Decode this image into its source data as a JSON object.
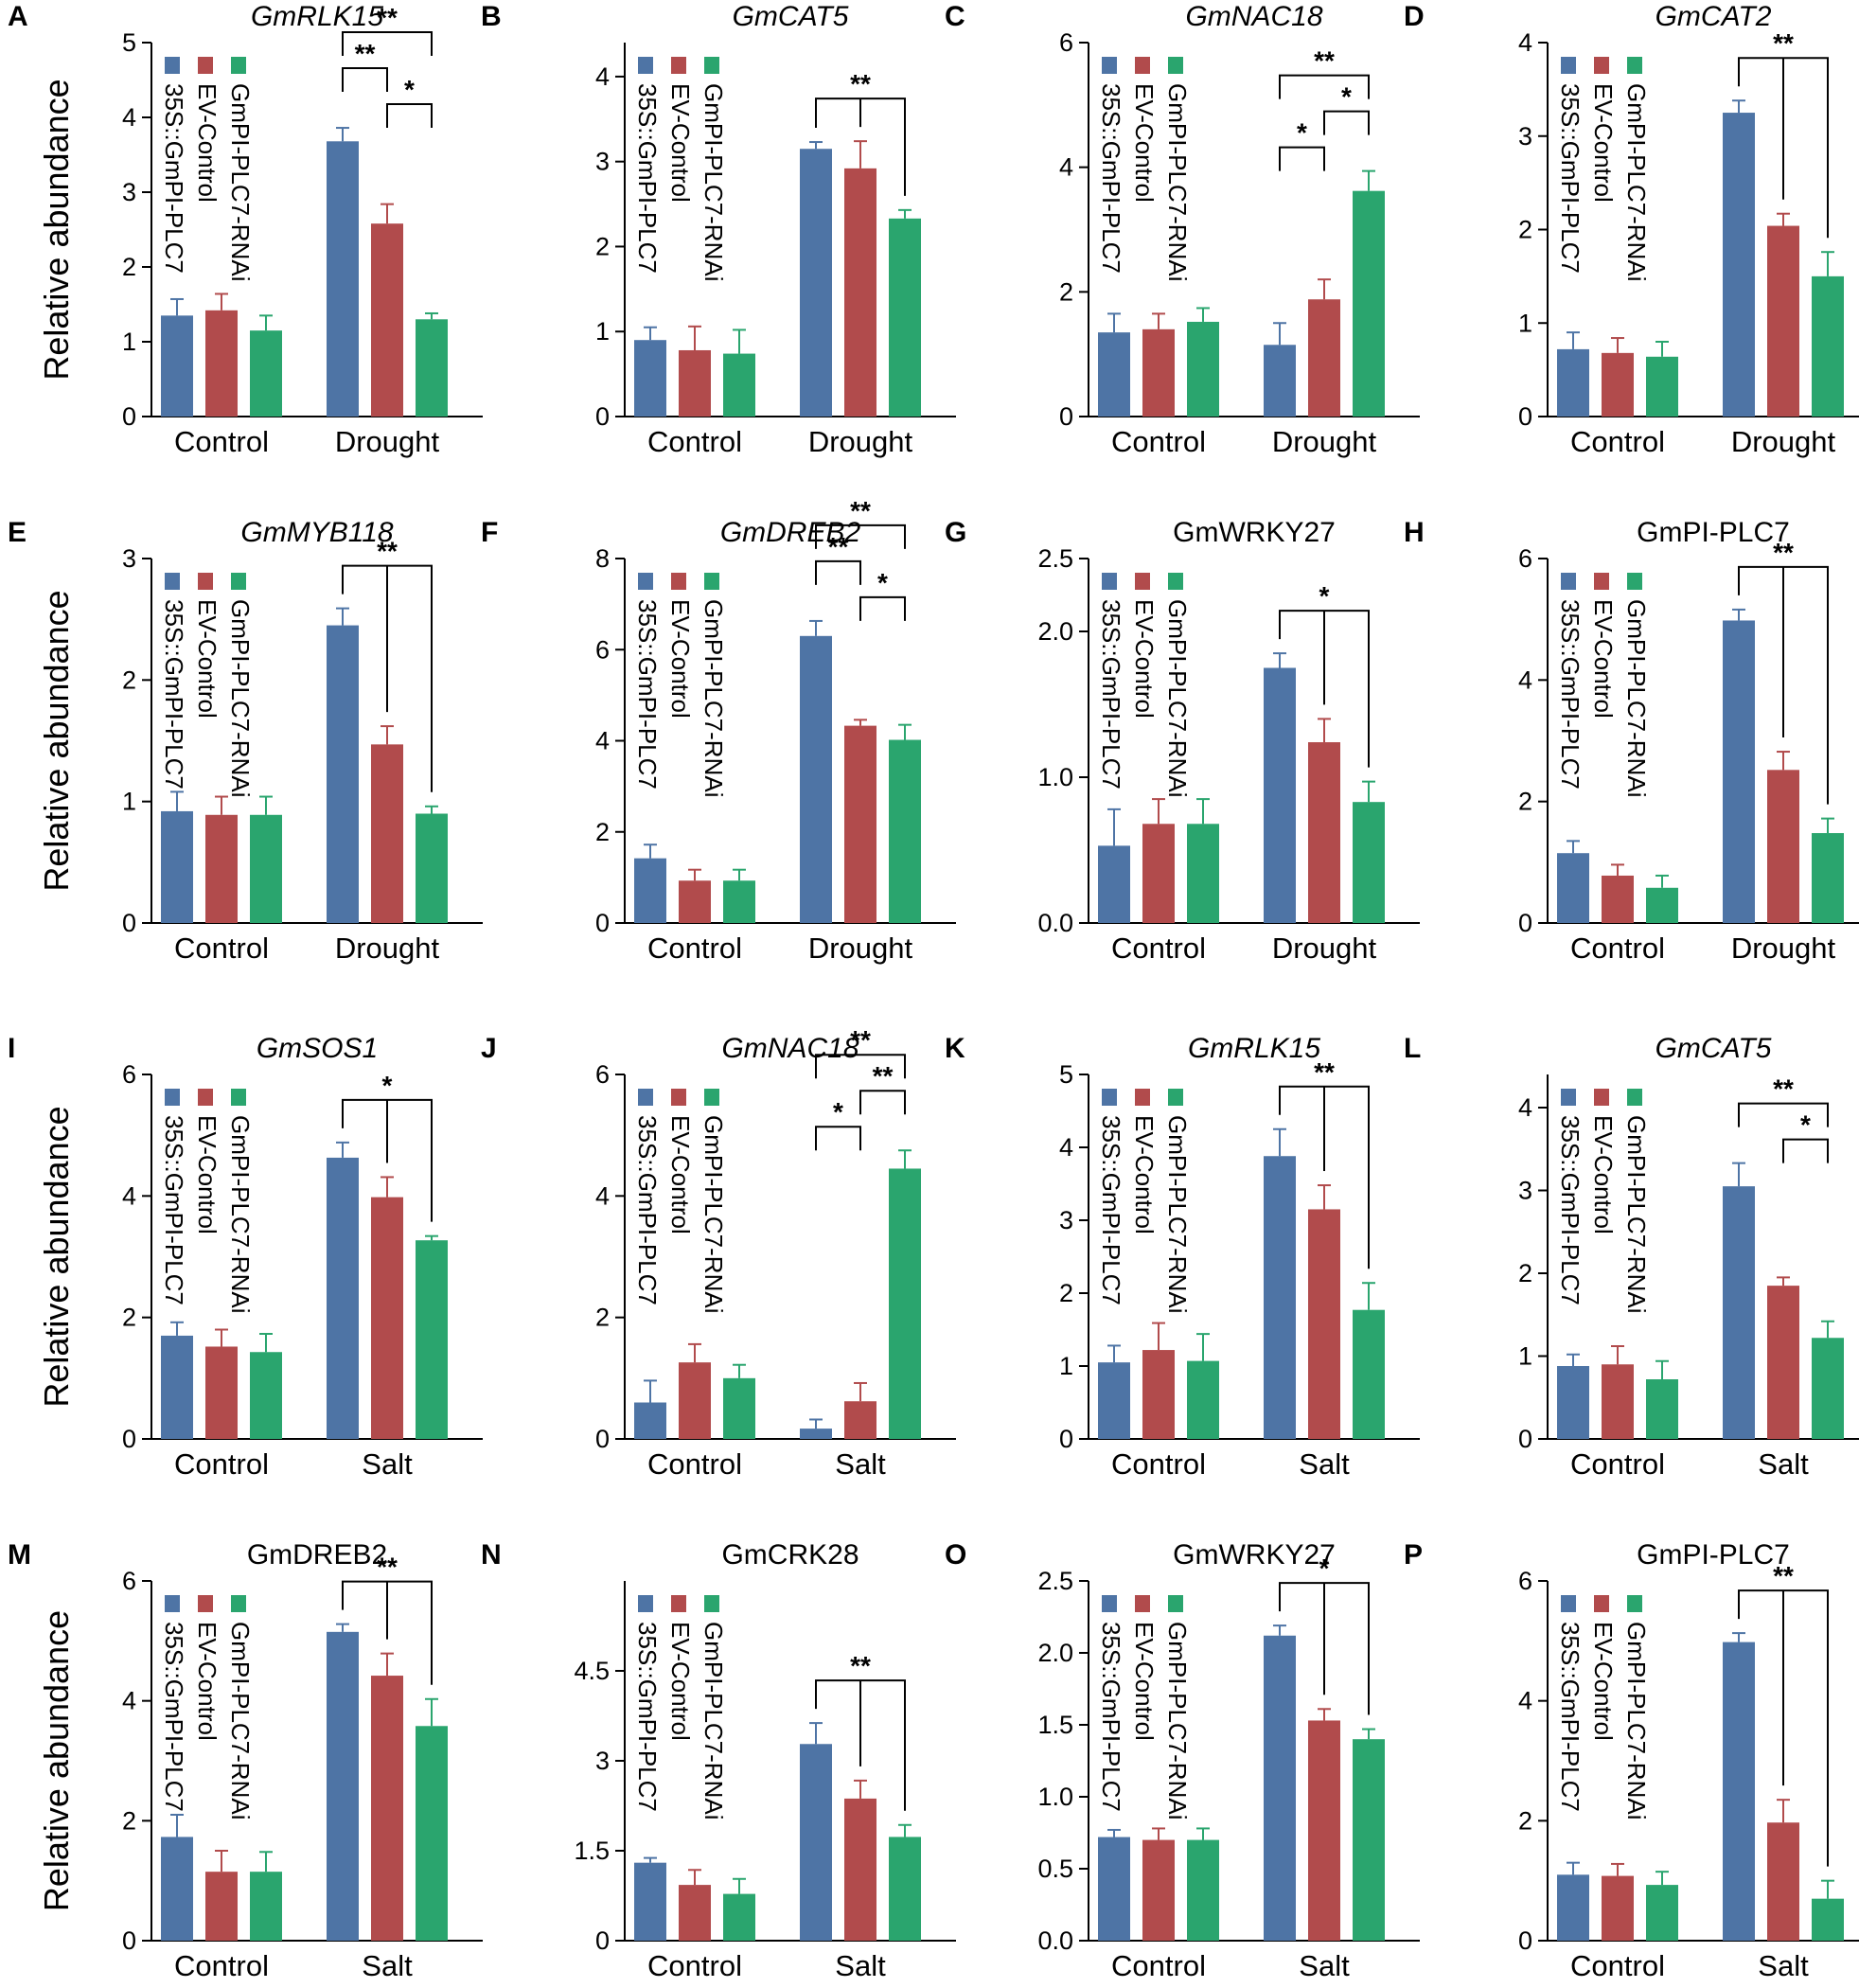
{
  "colors": {
    "series": [
      "#4e74a5",
      "#b14b4c",
      "#2aa56e"
    ],
    "axis": "#000000"
  },
  "ylabel": "Relative abundance",
  "legend": [
    "35S::GmPI-PLC7",
    "EV-Control",
    "GmPI-PLC7-RNAi"
  ],
  "chart_data": [
    {
      "type": "bar",
      "panel": "A",
      "title": "GmRLK15",
      "italic": true,
      "categories": [
        "Control",
        "Drought"
      ],
      "yticks": [
        "0",
        "1",
        "2",
        "3",
        "4",
        "5"
      ],
      "ylim": [
        0,
        5
      ],
      "series": [
        {
          "name": "35S::GmPI-PLC7",
          "values": [
            1.35,
            3.68
          ],
          "errors": [
            0.22,
            0.18
          ]
        },
        {
          "name": "EV-Control",
          "values": [
            1.42,
            2.58
          ],
          "errors": [
            0.22,
            0.26
          ]
        },
        {
          "name": "GmPI-PLC7-RNAi",
          "values": [
            1.15,
            1.3
          ],
          "errors": [
            0.2,
            0.08
          ]
        }
      ],
      "sig": [
        {
          "type": "bracket",
          "pair": [
            0,
            1
          ],
          "label": "**",
          "level": 2
        },
        {
          "type": "bracket",
          "pair": [
            1,
            2
          ],
          "label": "*",
          "level": 1
        },
        {
          "type": "span",
          "pair": [
            0,
            2
          ],
          "label": "**",
          "level": 3
        }
      ]
    },
    {
      "type": "bar",
      "panel": "B",
      "title": "GmCAT5",
      "italic": true,
      "categories": [
        "Control",
        "Drought"
      ],
      "yticks": [
        "0",
        "1",
        "2",
        "3",
        "4"
      ],
      "ylim": [
        0,
        4.4
      ],
      "series": [
        {
          "name": "35S::GmPI-PLC7",
          "values": [
            0.9,
            3.15
          ],
          "errors": [
            0.15,
            0.08
          ]
        },
        {
          "name": "EV-Control",
          "values": [
            0.78,
            2.92
          ],
          "errors": [
            0.28,
            0.32
          ]
        },
        {
          "name": "GmPI-PLC7-RNAi",
          "values": [
            0.74,
            2.33
          ],
          "errors": [
            0.28,
            0.1
          ]
        }
      ],
      "sig": [
        {
          "type": "trident",
          "label": "**",
          "level": 1
        }
      ]
    },
    {
      "type": "bar",
      "panel": "C",
      "title": "GmNAC18",
      "italic": true,
      "categories": [
        "Control",
        "Drought"
      ],
      "yticks": [
        "0",
        "2",
        "4",
        "6"
      ],
      "ylim": [
        0,
        6
      ],
      "series": [
        {
          "name": "35S::GmPI-PLC7",
          "values": [
            1.35,
            1.15
          ],
          "errors": [
            0.3,
            0.35
          ]
        },
        {
          "name": "EV-Control",
          "values": [
            1.4,
            1.88
          ],
          "errors": [
            0.25,
            0.32
          ]
        },
        {
          "name": "GmPI-PLC7-RNAi",
          "values": [
            1.52,
            3.62
          ],
          "errors": [
            0.22,
            0.32
          ]
        }
      ],
      "sig": [
        {
          "type": "bracket",
          "pair": [
            0,
            1
          ],
          "label": "*",
          "level": 1
        },
        {
          "type": "bracket",
          "pair": [
            1,
            2
          ],
          "label": "*",
          "level": 2
        },
        {
          "type": "span",
          "pair": [
            0,
            2
          ],
          "label": "**",
          "level": 3
        }
      ]
    },
    {
      "type": "bar",
      "panel": "D",
      "title": "GmCAT2",
      "italic": true,
      "categories": [
        "Control",
        "Drought"
      ],
      "yticks": [
        "0",
        "1",
        "2",
        "3",
        "4"
      ],
      "ylim": [
        0,
        4
      ],
      "series": [
        {
          "name": "35S::GmPI-PLC7",
          "values": [
            0.72,
            3.25
          ],
          "errors": [
            0.18,
            0.13
          ]
        },
        {
          "name": "EV-Control",
          "values": [
            0.68,
            2.04
          ],
          "errors": [
            0.16,
            0.13
          ]
        },
        {
          "name": "GmPI-PLC7-RNAi",
          "values": [
            0.64,
            1.5
          ],
          "errors": [
            0.16,
            0.26
          ]
        }
      ],
      "sig": [
        {
          "type": "trident",
          "label": "**",
          "level": 1
        }
      ]
    },
    {
      "type": "bar",
      "panel": "E",
      "title": "GmMYB118",
      "italic": true,
      "categories": [
        "Control",
        "Drought"
      ],
      "yticks": [
        "0",
        "1",
        "2",
        "3"
      ],
      "ylim": [
        0,
        3
      ],
      "series": [
        {
          "name": "35S::GmPI-PLC7",
          "values": [
            0.92,
            2.45
          ],
          "errors": [
            0.16,
            0.14
          ]
        },
        {
          "name": "EV-Control",
          "values": [
            0.89,
            1.47
          ],
          "errors": [
            0.15,
            0.15
          ]
        },
        {
          "name": "GmPI-PLC7-RNAi",
          "values": [
            0.89,
            0.9
          ],
          "errors": [
            0.15,
            0.06
          ]
        }
      ],
      "sig": [
        {
          "type": "trident",
          "label": "**",
          "level": 1
        }
      ]
    },
    {
      "type": "bar",
      "panel": "F",
      "title": "GmDREB2",
      "italic": true,
      "categories": [
        "Control",
        "Drought"
      ],
      "yticks": [
        "0",
        "2",
        "4",
        "6",
        "8"
      ],
      "ylim": [
        0,
        8
      ],
      "series": [
        {
          "name": "35S::GmPI-PLC7",
          "values": [
            1.42,
            6.3
          ],
          "errors": [
            0.3,
            0.33
          ]
        },
        {
          "name": "EV-Control",
          "values": [
            0.93,
            4.33
          ],
          "errors": [
            0.24,
            0.13
          ]
        },
        {
          "name": "GmPI-PLC7-RNAi",
          "values": [
            0.93,
            4.02
          ],
          "errors": [
            0.24,
            0.33
          ]
        }
      ],
      "sig": [
        {
          "type": "bracket",
          "pair": [
            0,
            1
          ],
          "label": "**",
          "level": 2
        },
        {
          "type": "bracket",
          "pair": [
            1,
            2
          ],
          "label": "*",
          "level": 1
        },
        {
          "type": "span",
          "pair": [
            0,
            2
          ],
          "label": "**",
          "level": 3
        }
      ]
    },
    {
      "type": "bar",
      "panel": "G",
      "title": "GmWRKY27",
      "italic": false,
      "categories": [
        "Control",
        "Drought"
      ],
      "yticks": [
        "0.0",
        "1.0",
        "2.0",
        "2.5"
      ],
      "ytickvals": [
        0,
        1,
        2,
        2.5
      ],
      "ylim": [
        0,
        2.5
      ],
      "series": [
        {
          "name": "35S::GmPI-PLC7",
          "values": [
            0.53,
            1.75
          ],
          "errors": [
            0.25,
            0.1
          ]
        },
        {
          "name": "EV-Control",
          "values": [
            0.68,
            1.24
          ],
          "errors": [
            0.17,
            0.16
          ]
        },
        {
          "name": "GmPI-PLC7-RNAi",
          "values": [
            0.68,
            0.83
          ],
          "errors": [
            0.17,
            0.14
          ]
        }
      ],
      "sig": [
        {
          "type": "trident",
          "label": "*",
          "level": 1
        }
      ]
    },
    {
      "type": "bar",
      "panel": "H",
      "title": "GmPI-PLC7",
      "italic": false,
      "categories": [
        "Control",
        "Drought"
      ],
      "yticks": [
        "0",
        "2",
        "4",
        "6"
      ],
      "ylim": [
        0,
        6
      ],
      "series": [
        {
          "name": "35S::GmPI-PLC7",
          "values": [
            1.15,
            4.98
          ],
          "errors": [
            0.2,
            0.18
          ]
        },
        {
          "name": "EV-Control",
          "values": [
            0.78,
            2.52
          ],
          "errors": [
            0.18,
            0.3
          ]
        },
        {
          "name": "GmPI-PLC7-RNAi",
          "values": [
            0.58,
            1.48
          ],
          "errors": [
            0.2,
            0.24
          ]
        }
      ],
      "sig": [
        {
          "type": "trident",
          "label": "**",
          "level": 1
        }
      ]
    },
    {
      "type": "bar",
      "panel": "I",
      "title": "GmSOS1",
      "italic": true,
      "categories": [
        "Control",
        "Salt"
      ],
      "yticks": [
        "0",
        "2",
        "4",
        "6"
      ],
      "ylim": [
        0,
        6
      ],
      "series": [
        {
          "name": "35S::GmPI-PLC7",
          "values": [
            1.7,
            4.63
          ],
          "errors": [
            0.22,
            0.25
          ]
        },
        {
          "name": "EV-Control",
          "values": [
            1.52,
            3.98
          ],
          "errors": [
            0.28,
            0.33
          ]
        },
        {
          "name": "GmPI-PLC7-RNAi",
          "values": [
            1.43,
            3.27
          ],
          "errors": [
            0.3,
            0.07
          ]
        }
      ],
      "sig": [
        {
          "type": "trident",
          "label": "*",
          "level": 1
        }
      ]
    },
    {
      "type": "bar",
      "panel": "J",
      "title": "GmNAC18",
      "italic": true,
      "categories": [
        "Control",
        "Salt"
      ],
      "yticks": [
        "0",
        "2",
        "4",
        "6"
      ],
      "ylim": [
        0,
        6
      ],
      "series": [
        {
          "name": "35S::GmPI-PLC7",
          "values": [
            0.6,
            0.17
          ],
          "errors": [
            0.36,
            0.15
          ]
        },
        {
          "name": "EV-Control",
          "values": [
            1.26,
            0.62
          ],
          "errors": [
            0.3,
            0.3
          ]
        },
        {
          "name": "GmPI-PLC7-RNAi",
          "values": [
            1.0,
            4.45
          ],
          "errors": [
            0.22,
            0.3
          ]
        }
      ],
      "sig": [
        {
          "type": "bracket",
          "pair": [
            0,
            1
          ],
          "label": "*",
          "level": 1
        },
        {
          "type": "bracket",
          "pair": [
            1,
            2
          ],
          "label": "**",
          "level": 2
        },
        {
          "type": "span",
          "pair": [
            0,
            2
          ],
          "label": "**",
          "level": 3
        }
      ]
    },
    {
      "type": "bar",
      "panel": "K",
      "title": "GmRLK15",
      "italic": true,
      "categories": [
        "Control",
        "Salt"
      ],
      "yticks": [
        "0",
        "1",
        "2",
        "3",
        "4",
        "5"
      ],
      "ylim": [
        0,
        5
      ],
      "series": [
        {
          "name": "35S::GmPI-PLC7",
          "values": [
            1.05,
            3.88
          ],
          "errors": [
            0.23,
            0.37
          ]
        },
        {
          "name": "EV-Control",
          "values": [
            1.22,
            3.15
          ],
          "errors": [
            0.37,
            0.33
          ]
        },
        {
          "name": "GmPI-PLC7-RNAi",
          "values": [
            1.07,
            1.77
          ],
          "errors": [
            0.37,
            0.37
          ]
        }
      ],
      "sig": [
        {
          "type": "trident",
          "label": "**",
          "level": 1
        }
      ]
    },
    {
      "type": "bar",
      "panel": "L",
      "title": "GmCAT5",
      "italic": true,
      "categories": [
        "Control",
        "Salt"
      ],
      "yticks": [
        "0",
        "1",
        "2",
        "3",
        "4"
      ],
      "ylim": [
        0,
        4.4
      ],
      "series": [
        {
          "name": "35S::GmPI-PLC7",
          "values": [
            0.88,
            3.05
          ],
          "errors": [
            0.14,
            0.28
          ]
        },
        {
          "name": "EV-Control",
          "values": [
            0.9,
            1.85
          ],
          "errors": [
            0.22,
            0.1
          ]
        },
        {
          "name": "GmPI-PLC7-RNAi",
          "values": [
            0.72,
            1.22
          ],
          "errors": [
            0.22,
            0.2
          ]
        }
      ],
      "sig": [
        {
          "type": "bracket",
          "pair": [
            1,
            2
          ],
          "label": "*",
          "level": 1
        },
        {
          "type": "span",
          "pair": [
            0,
            2
          ],
          "label": "**",
          "level": 2
        }
      ]
    },
    {
      "type": "bar",
      "panel": "M",
      "title": "GmDREB2",
      "italic": false,
      "categories": [
        "Control",
        "Salt"
      ],
      "yticks": [
        "0",
        "2",
        "4",
        "6"
      ],
      "ylim": [
        0,
        6
      ],
      "series": [
        {
          "name": "35S::GmPI-PLC7",
          "values": [
            1.73,
            5.15
          ],
          "errors": [
            0.37,
            0.13
          ]
        },
        {
          "name": "EV-Control",
          "values": [
            1.15,
            4.42
          ],
          "errors": [
            0.35,
            0.37
          ]
        },
        {
          "name": "GmPI-PLC7-RNAi",
          "values": [
            1.15,
            3.58
          ],
          "errors": [
            0.33,
            0.45
          ]
        }
      ],
      "sig": [
        {
          "type": "trident",
          "label": "**",
          "level": 1
        }
      ]
    },
    {
      "type": "bar",
      "panel": "N",
      "title": "GmCRK28",
      "italic": false,
      "categories": [
        "Control",
        "Salt"
      ],
      "yticks": [
        "0",
        "1.5",
        "3",
        "4.5"
      ],
      "ytickvals": [
        0,
        1.5,
        3,
        4.5
      ],
      "ylim": [
        0,
        6
      ],
      "series": [
        {
          "name": "35S::GmPI-PLC7",
          "values": [
            1.3,
            3.28
          ],
          "errors": [
            0.08,
            0.35
          ]
        },
        {
          "name": "EV-Control",
          "values": [
            0.93,
            2.37
          ],
          "errors": [
            0.25,
            0.3
          ]
        },
        {
          "name": "GmPI-PLC7-RNAi",
          "values": [
            0.78,
            1.73
          ],
          "errors": [
            0.25,
            0.2
          ]
        }
      ],
      "sig": [
        {
          "type": "trident",
          "label": "**",
          "level": 1
        }
      ]
    },
    {
      "type": "bar",
      "panel": "O",
      "title": "GmWRKY27",
      "italic": false,
      "categories": [
        "Control",
        "Salt"
      ],
      "yticks": [
        "0.0",
        "0.5",
        "1.0",
        "1.5",
        "2.0",
        "2.5"
      ],
      "ylim": [
        0,
        2.5
      ],
      "series": [
        {
          "name": "35S::GmPI-PLC7",
          "values": [
            0.72,
            2.12
          ],
          "errors": [
            0.05,
            0.07
          ]
        },
        {
          "name": "EV-Control",
          "values": [
            0.7,
            1.53
          ],
          "errors": [
            0.08,
            0.08
          ]
        },
        {
          "name": "GmPI-PLC7-RNAi",
          "values": [
            0.7,
            1.4
          ],
          "errors": [
            0.08,
            0.07
          ]
        }
      ],
      "sig": [
        {
          "type": "trident",
          "label": "*",
          "level": 1
        }
      ]
    },
    {
      "type": "bar",
      "panel": "P",
      "title": "GmPI-PLC7",
      "italic": false,
      "categories": [
        "Control",
        "Salt"
      ],
      "yticks": [
        "0",
        "2",
        "4",
        "6"
      ],
      "ylim": [
        0,
        6
      ],
      "series": [
        {
          "name": "35S::GmPI-PLC7",
          "values": [
            1.1,
            4.98
          ],
          "errors": [
            0.2,
            0.15
          ]
        },
        {
          "name": "EV-Control",
          "values": [
            1.08,
            1.97
          ],
          "errors": [
            0.2,
            0.38
          ]
        },
        {
          "name": "GmPI-PLC7-RNAi",
          "values": [
            0.93,
            0.7
          ],
          "errors": [
            0.22,
            0.3
          ]
        }
      ],
      "sig": [
        {
          "type": "trident",
          "label": "**",
          "level": 1
        }
      ]
    }
  ]
}
